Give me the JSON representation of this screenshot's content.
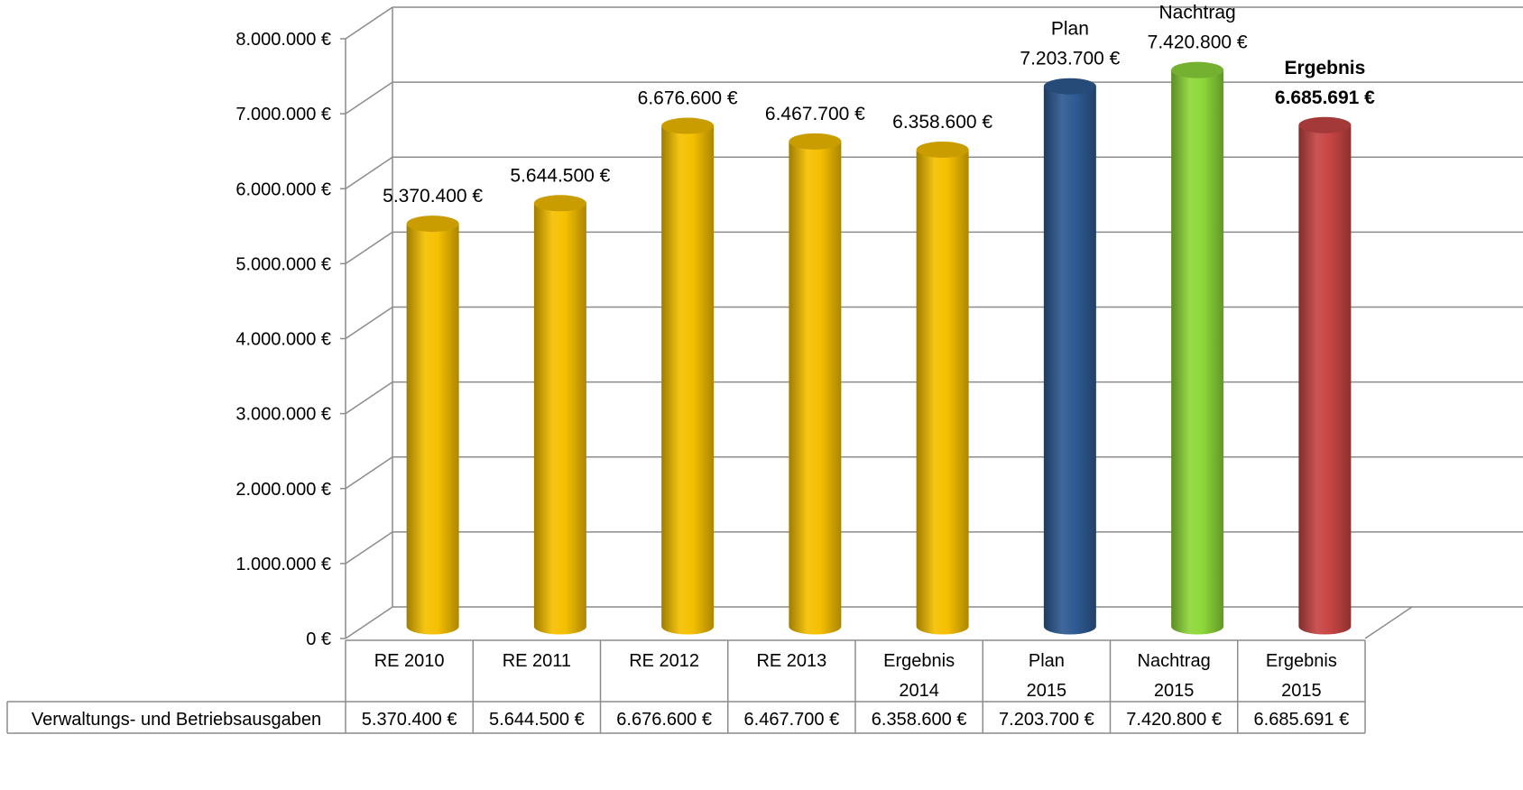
{
  "chart_data": {
    "type": "bar",
    "categories": [
      [
        "RE 2010"
      ],
      [
        "RE 2011"
      ],
      [
        "RE 2012"
      ],
      [
        "RE 2013"
      ],
      [
        "Ergebnis",
        "2014"
      ],
      [
        "Plan",
        "2015"
      ],
      [
        "Nachtrag",
        "2015"
      ],
      [
        "Ergebnis",
        "2015"
      ]
    ],
    "series": [
      {
        "name": "Verwaltungs- und Betriebsausgaben",
        "values": [
          5370400,
          5644500,
          6676600,
          6467700,
          6358600,
          7203700,
          7420800,
          6685691
        ]
      }
    ],
    "bar_colors": [
      "#F5C000",
      "#F5C000",
      "#F5C000",
      "#F5C000",
      "#F5C000",
      "#2E5B93",
      "#8ED83A",
      "#C84545"
    ],
    "data_labels": [
      {
        "lines": [
          "5.370.400 €"
        ],
        "bold": false
      },
      {
        "lines": [
          "5.644.500 €"
        ],
        "bold": false
      },
      {
        "lines": [
          "6.676.600 €"
        ],
        "bold": false
      },
      {
        "lines": [
          "6.467.700 €"
        ],
        "bold": false
      },
      {
        "lines": [
          "6.358.600 €"
        ],
        "bold": false
      },
      {
        "lines": [
          "Plan",
          "7.203.700 €"
        ],
        "bold": false
      },
      {
        "lines": [
          "Nachtrag",
          "7.420.800 €"
        ],
        "bold": false
      },
      {
        "lines": [
          "Ergebnis",
          "6.685.691 €"
        ],
        "bold": true
      }
    ],
    "yticks": [
      "0 €",
      "1.000.000 €",
      "2.000.000 €",
      "3.000.000 €",
      "4.000.000 €",
      "5.000.000 €",
      "6.000.000 €",
      "7.000.000 €",
      "8.000.000 €"
    ],
    "ylim": [
      0,
      8000000
    ],
    "grid": true,
    "table": {
      "row_label": "Verwaltungs- und Betriebsausgaben",
      "cells": [
        "5.370.400 €",
        "5.644.500 €",
        "6.676.600 €",
        "6.467.700 €",
        "6.358.600 €",
        "7.203.700 €",
        "7.420.800 €",
        "6.685.691 €"
      ]
    }
  }
}
